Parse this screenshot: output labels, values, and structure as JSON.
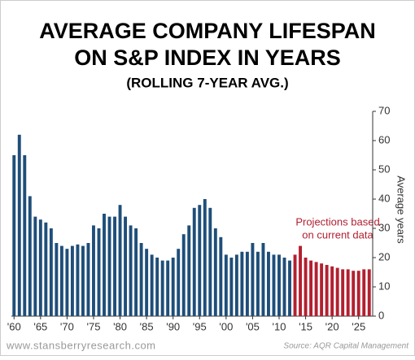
{
  "chart_data": {
    "type": "bar",
    "title": [
      "AVERAGE COMPANY LIFESPAN",
      "ON S&P INDEX IN YEARS"
    ],
    "subtitle": "(ROLLING 7-YEAR AVG.)",
    "y_label": "Average years",
    "annotation": [
      "Projections based",
      "on current data"
    ],
    "footer_left": "www.stansberryresearch.com",
    "footer_right": "Source: AQR Capital Management",
    "categories": [
      "'60",
      null,
      null,
      null,
      null,
      "'65",
      null,
      null,
      null,
      null,
      "'70",
      null,
      null,
      null,
      null,
      "'75",
      null,
      null,
      null,
      null,
      "'80",
      null,
      null,
      null,
      null,
      "'85",
      null,
      null,
      null,
      null,
      "'90",
      null,
      null,
      null,
      null,
      "'95",
      null,
      null,
      null,
      null,
      "'00",
      null,
      null,
      null,
      null,
      "'05",
      null,
      null,
      null,
      null,
      "'10",
      null,
      null,
      null,
      null,
      "'15",
      null,
      null,
      null,
      null,
      "'20",
      null,
      null,
      null,
      null,
      "'25",
      null,
      null
    ],
    "values": [
      55,
      62,
      55,
      41,
      34,
      33,
      32,
      30,
      25,
      24,
      23,
      24,
      24.5,
      24,
      25,
      31,
      30,
      35,
      34,
      34,
      38,
      34,
      31,
      30,
      25,
      23,
      21,
      20,
      19,
      19,
      20,
      23,
      28,
      31,
      37,
      38,
      40,
      37,
      30,
      27,
      21,
      20,
      21,
      22,
      22,
      25,
      22,
      25,
      22,
      21,
      21,
      20,
      19,
      21,
      24,
      20,
      19,
      18.5,
      18,
      17.5,
      17,
      16.5,
      16,
      16,
      15.5,
      15.5,
      16,
      16
    ],
    "color": "#1f4e79",
    "projection_color": "#b22030",
    "projection_from": 53,
    "ylim": [
      0,
      70
    ],
    "yticks": [
      0,
      10,
      20,
      30,
      40,
      50,
      60,
      70
    ]
  }
}
